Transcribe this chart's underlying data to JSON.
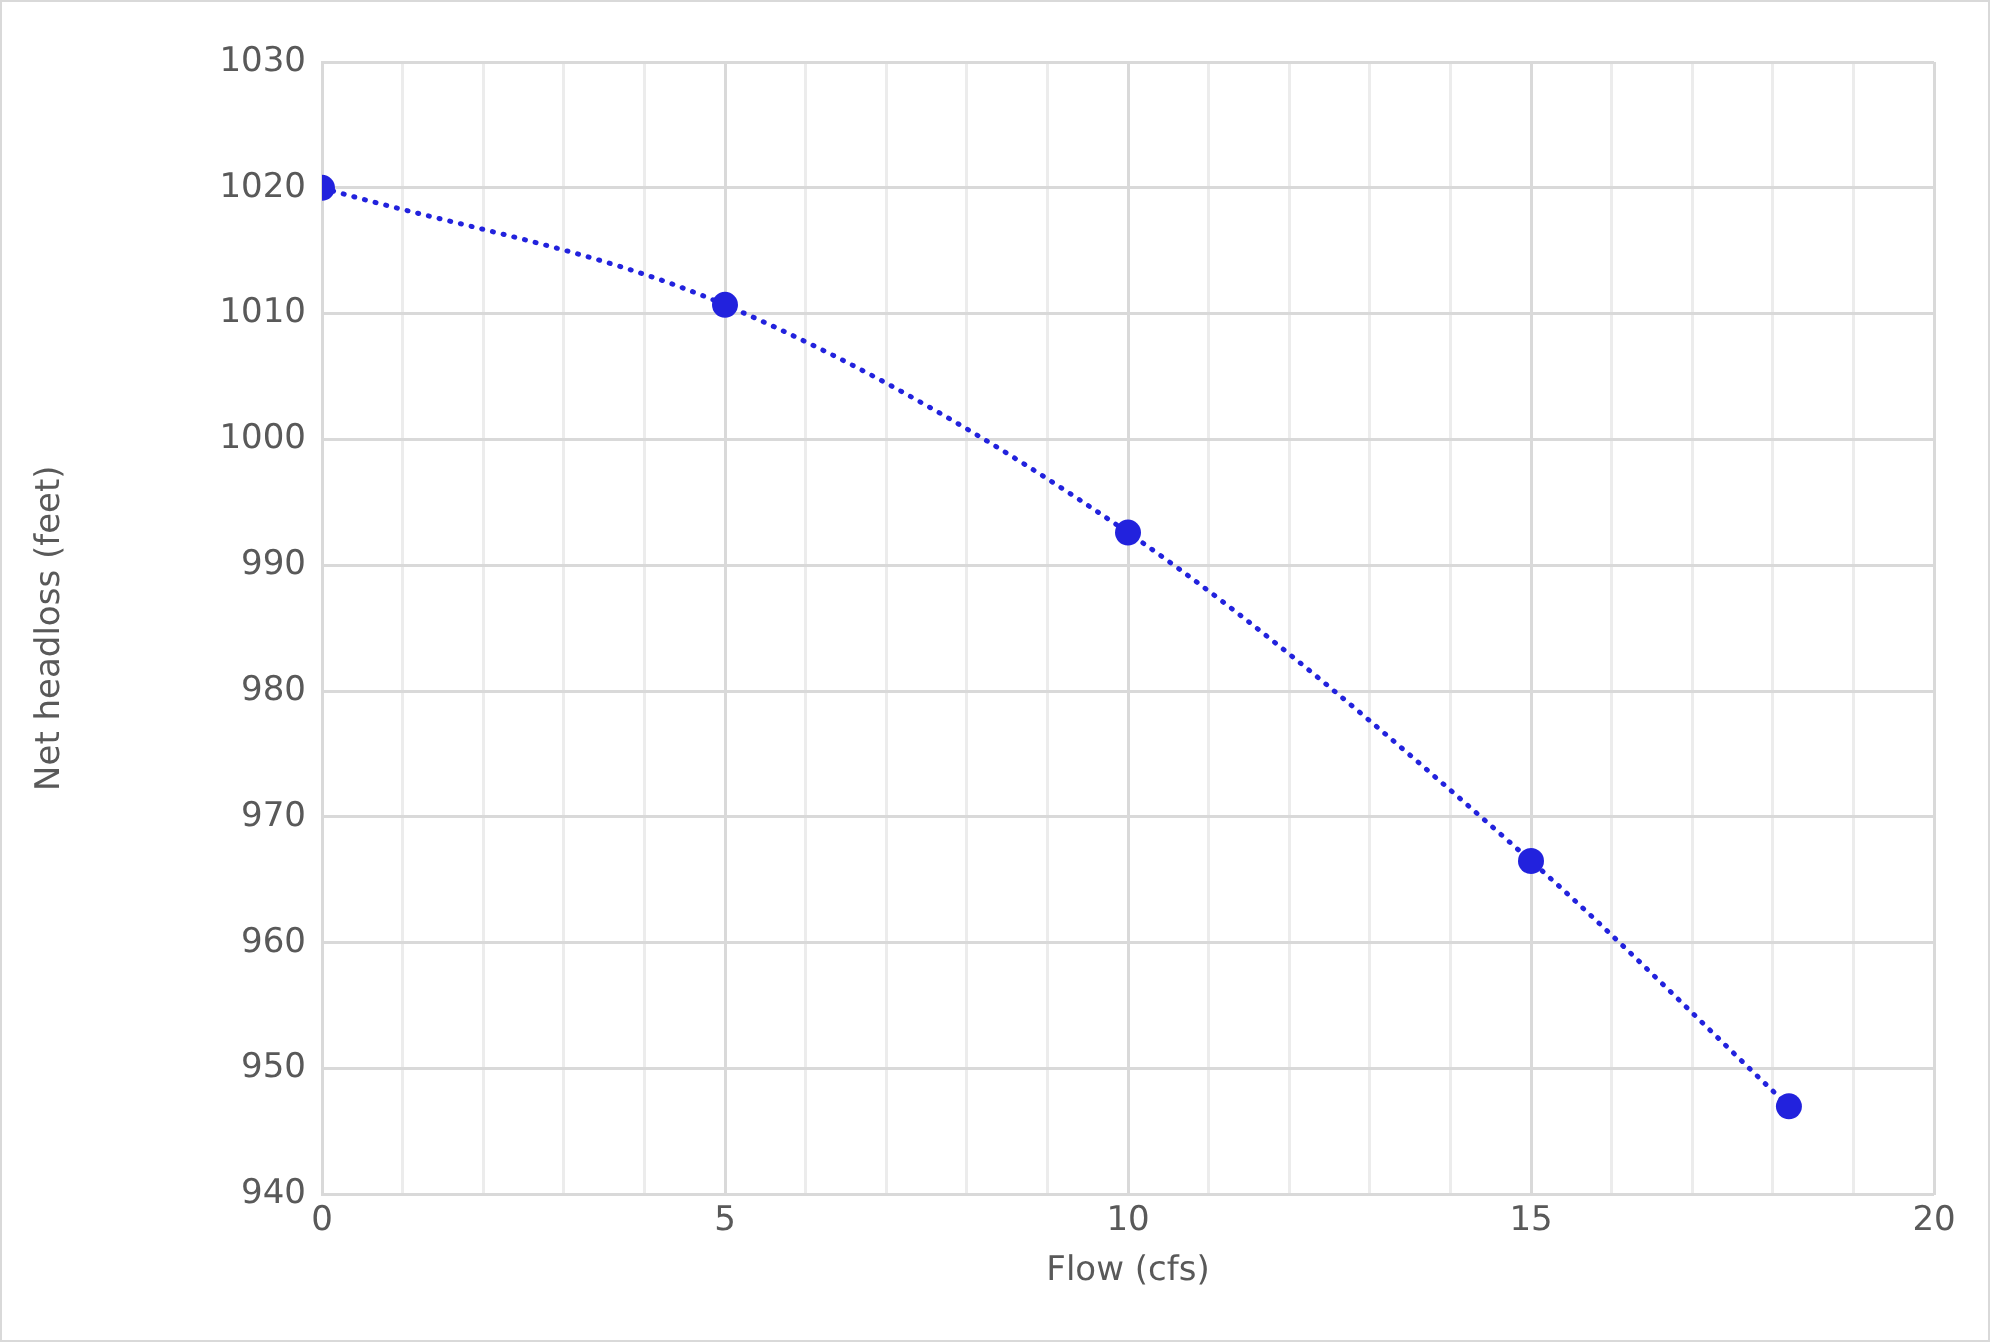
{
  "chart_data": {
    "type": "line",
    "xlabel": "Flow (cfs)",
    "ylabel": "Net headloss (feet)",
    "x": [
      0,
      5,
      10,
      15,
      18.2
    ],
    "series": [
      {
        "color": "#2222dd",
        "values": [
          1020,
          1010.7,
          992.6,
          966.5,
          947
        ]
      }
    ],
    "xlim": [
      0,
      20
    ],
    "xticks": [
      0,
      {
        "value": 1,
        "label": null
      },
      {
        "value": 2,
        "label": null
      },
      {
        "value": 3,
        "label": null
      },
      {
        "value": 4,
        "label": null
      },
      5,
      {
        "value": 6,
        "label": null
      },
      {
        "value": 7,
        "label": null
      },
      {
        "value": 8,
        "label": null
      },
      {
        "value": 9,
        "label": null
      },
      10,
      {
        "value": 11,
        "label": null
      },
      {
        "value": 12,
        "label": null
      },
      {
        "value": 13,
        "label": null
      },
      {
        "value": 14,
        "label": null
      },
      15,
      {
        "value": 16,
        "label": null
      },
      {
        "value": 17,
        "label": null
      },
      {
        "value": 18,
        "label": null
      },
      {
        "value": 19,
        "label": null
      },
      20
    ],
    "ylim": [
      940,
      1030
    ],
    "yticks": [
      940,
      950,
      960,
      970,
      980,
      990,
      1000,
      1010,
      1020,
      1030
    ],
    "grid": true,
    "legend": false,
    "marker": "circle",
    "line_style": "dotted"
  }
}
